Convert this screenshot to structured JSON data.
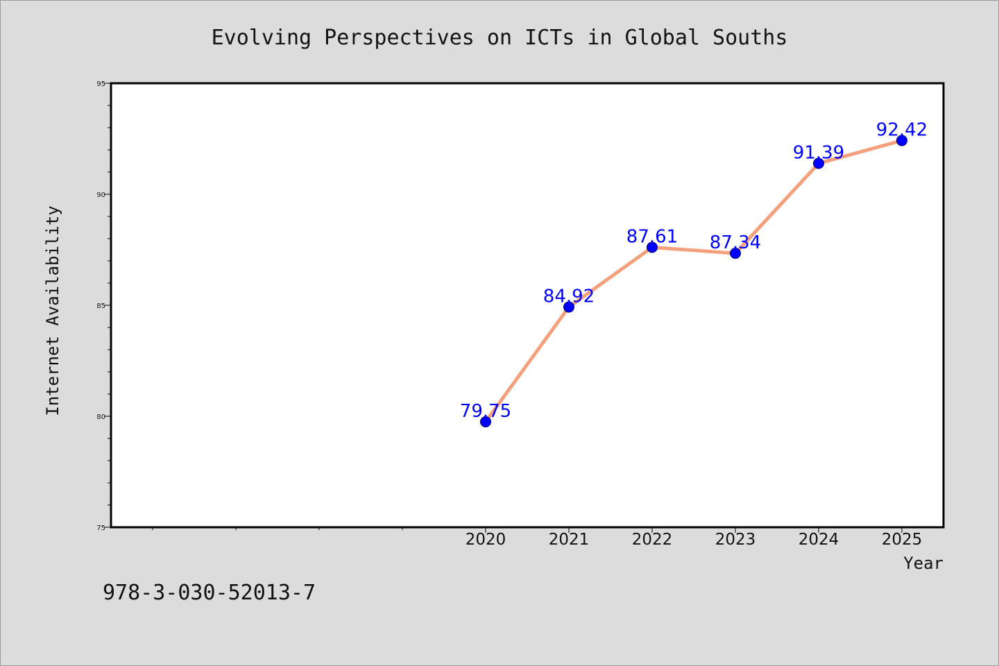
{
  "chart_data": {
    "type": "line",
    "title": "Evolving Perspectives on ICTs in Global Souths",
    "xlabel": "Year",
    "ylabel": "Internet Availability",
    "x": [
      2020,
      2021,
      2022,
      2023,
      2024,
      2025
    ],
    "series": [
      {
        "values": [
          79.75,
          84.92,
          87.61,
          87.34,
          91.39,
          92.42
        ]
      }
    ],
    "data_labels": [
      "79.75",
      "84.92",
      "87.61",
      "87.34",
      "91.39",
      "92.42"
    ],
    "xtick_labels": [
      "2020",
      "2021",
      "2022",
      "2023",
      "2024",
      "2025"
    ],
    "xlim": [
      2015.5,
      2025.5
    ],
    "ylim": [
      75,
      95
    ],
    "yticks": [
      75,
      80,
      85,
      90,
      95
    ],
    "ytick_labels": [
      "75",
      "80",
      "85",
      "90",
      "95"
    ],
    "grid": false,
    "line_color": "#f4a07c",
    "marker_color": "#0000ff",
    "label_color": "#0000ff"
  },
  "footer": {
    "isbn": "978-3-030-52013-7"
  }
}
